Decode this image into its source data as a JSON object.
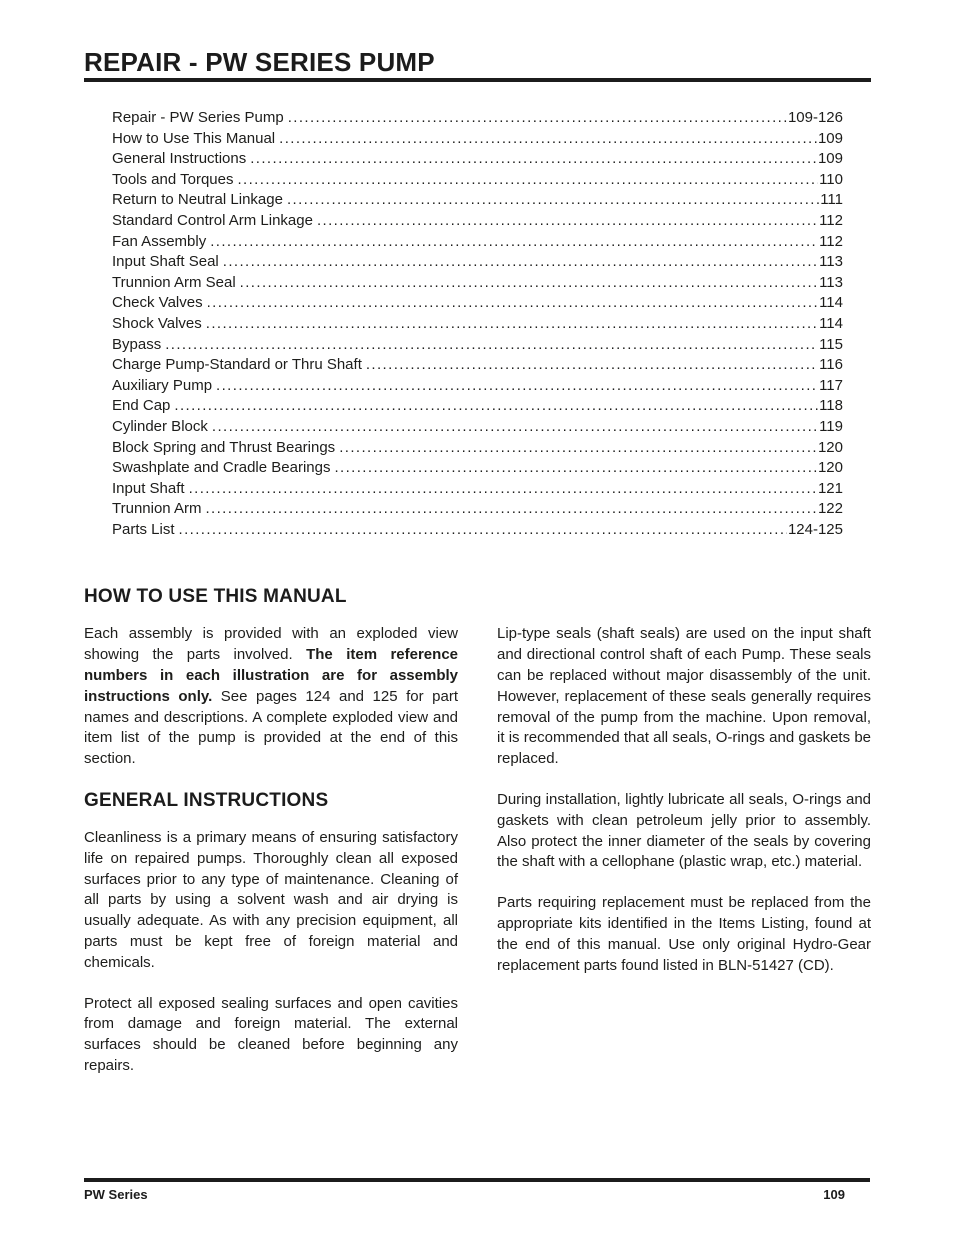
{
  "title": "REPAIR - PW SERIES PUMP",
  "toc": {
    "entries": [
      {
        "label": "Repair - PW Series Pump",
        "page": "109-126"
      },
      {
        "label": "How to Use This Manual",
        "page": "109"
      },
      {
        "label": "General Instructions",
        "page": "109"
      },
      {
        "label": "Tools and Torques",
        "page": "110"
      },
      {
        "label": "Return to Neutral Linkage",
        "page": "111"
      },
      {
        "label": "Standard Control Arm Linkage",
        "page": "112"
      },
      {
        "label": "Fan Assembly",
        "page": "112"
      },
      {
        "label": "Input Shaft Seal",
        "page": "113"
      },
      {
        "label": "Trunnion Arm Seal",
        "page": "113"
      },
      {
        "label": "Check Valves",
        "page": "114"
      },
      {
        "label": "Shock Valves",
        "page": "114"
      },
      {
        "label": "Bypass",
        "page": "115"
      },
      {
        "label": "Charge Pump-Standard or Thru Shaft",
        "page": "116"
      },
      {
        "label": "Auxiliary Pump",
        "page": "117"
      },
      {
        "label": "End Cap",
        "page": "118"
      },
      {
        "label": "Cylinder Block",
        "page": "119"
      },
      {
        "label": "Block Spring and Thrust Bearings",
        "page": "120"
      },
      {
        "label": "Swashplate and Cradle Bearings",
        "page": "120"
      },
      {
        "label": "Input Shaft",
        "page": "121"
      },
      {
        "label": "Trunnion Arm",
        "page": "122"
      },
      {
        "label": "Parts List",
        "page": "124-125"
      }
    ]
  },
  "how_to_use": {
    "heading": "HOW TO USE THIS MANUAL",
    "intro": {
      "lead": "Each assembly is provided with an exploded view showing the parts involved. ",
      "bold": "The item reference numbers in each illustration are for assembly instructions only.",
      "tail": " See pages 124 and 125 for part names and descriptions. A complete exploded view and item list of the pump is provided at the end of this section."
    }
  },
  "general_instructions": {
    "heading": "GENERAL INSTRUCTIONS",
    "paragraphs": [
      "Cleanliness is a primary means of ensuring satisfactory life on repaired pumps. Thoroughly clean all exposed surfaces prior to any type of maintenance. Cleaning of all parts by using a solvent wash and air drying is usually adequate. As with any precision equipment, all parts must be kept free of foreign material and chemicals.",
      "Protect all exposed sealing surfaces and open cavities from damage and foreign material. The external surfaces should be cleaned before beginning any repairs."
    ]
  },
  "right_column": {
    "paragraphs": [
      "Lip-type seals (shaft seals) are used on the input shaft and directional control shaft of each Pump. These seals can be replaced without major disassembly of the unit. However, replacement of these seals generally requires removal of the pump from the machine. Upon removal, it is recommended that all seals, O-rings and gaskets be replaced.",
      "During installation, lightly lubricate all seals, O-rings and gaskets with clean petroleum jelly prior to assembly. Also protect the inner diameter of the seals by covering the shaft with a cellophane (plastic wrap, etc.) material.",
      "Parts requiring replacement must be replaced from the appropriate kits identified in the Items Listing, found at the end of this manual. Use only original Hydro-Gear replacement parts found listed in BLN-51427 (CD)."
    ]
  },
  "footer": {
    "left": "PW Series",
    "page_number": "109"
  }
}
